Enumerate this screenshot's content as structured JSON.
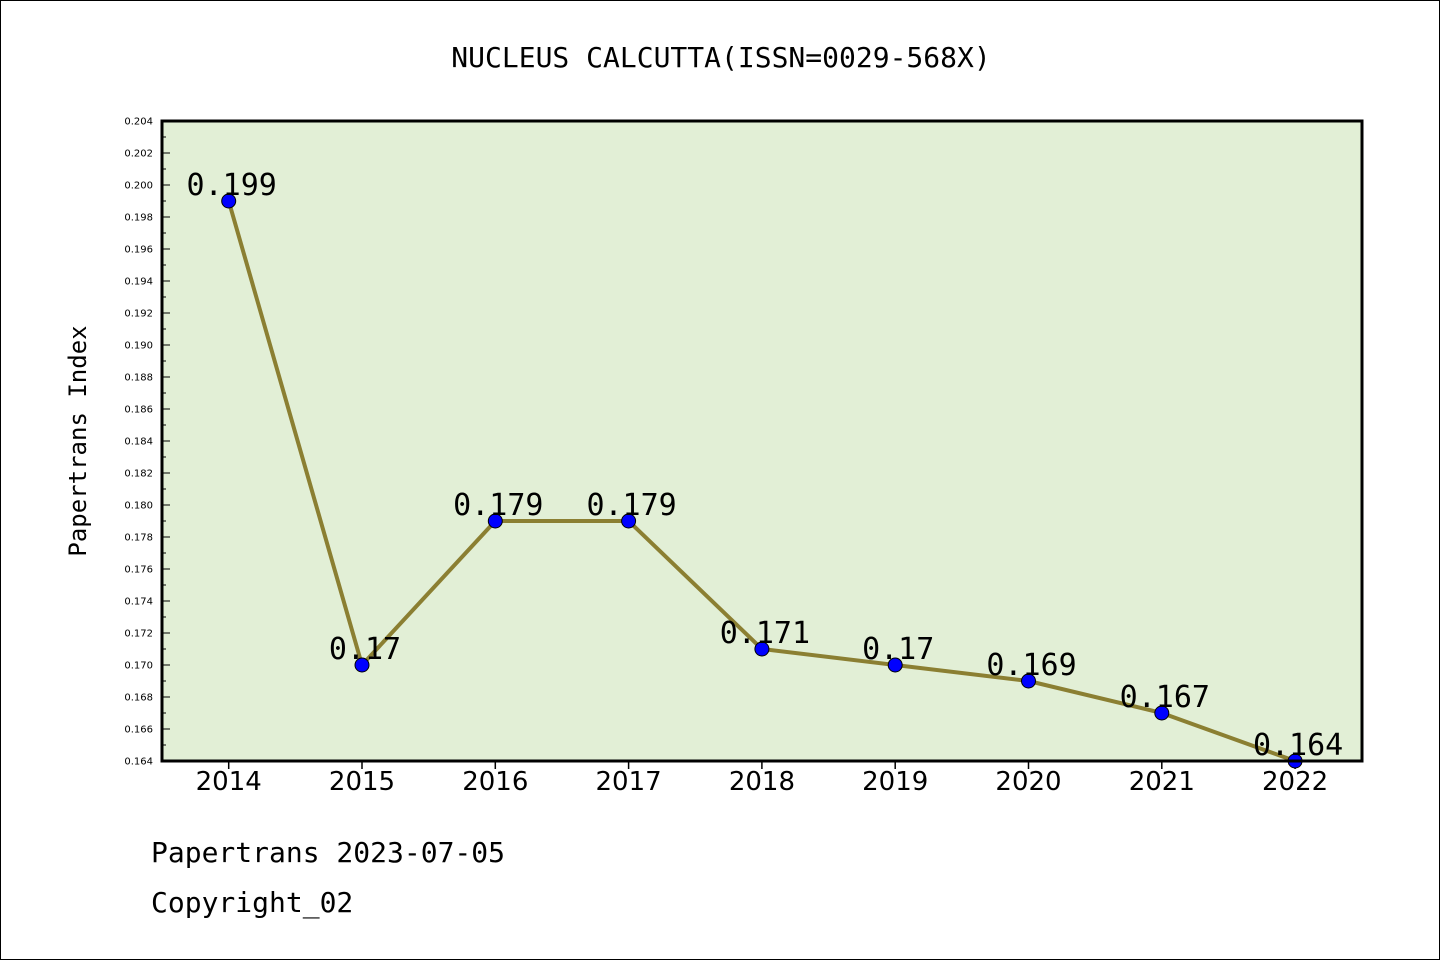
{
  "chart_data": {
    "type": "line",
    "title": "NUCLEUS CALCUTTA(ISSN=0029-568X)",
    "xlabel": "",
    "ylabel": "Papertrans Index",
    "categories": [
      "2014",
      "2015",
      "2016",
      "2017",
      "2018",
      "2019",
      "2020",
      "2021",
      "2022"
    ],
    "series": [
      {
        "values": [
          0.199,
          0.17,
          0.179,
          0.179,
          0.171,
          0.17,
          0.169,
          0.167,
          0.164
        ],
        "data_labels": [
          "0.199",
          "0.17",
          "0.179",
          "0.179",
          "0.171",
          "0.17",
          "0.169",
          "0.167",
          "0.164"
        ]
      }
    ],
    "ylim": [
      0.164,
      0.204
    ],
    "yticks": [
      "0.164",
      "0.166",
      "0.168",
      "0.170",
      "0.172",
      "0.174",
      "0.176",
      "0.178",
      "0.180",
      "0.182",
      "0.184",
      "0.186",
      "0.188",
      "0.190",
      "0.192",
      "0.194",
      "0.196",
      "0.198",
      "0.200",
      "0.202",
      "0.204"
    ],
    "grid": false,
    "colors": {
      "plot_background": "#e2efd6",
      "line": "#8b7f32",
      "marker": "#0000ff",
      "axis": "#000000"
    }
  },
  "footer": {
    "line1": "Papertrans 2023-07-05",
    "line2": "Copyright_02"
  }
}
